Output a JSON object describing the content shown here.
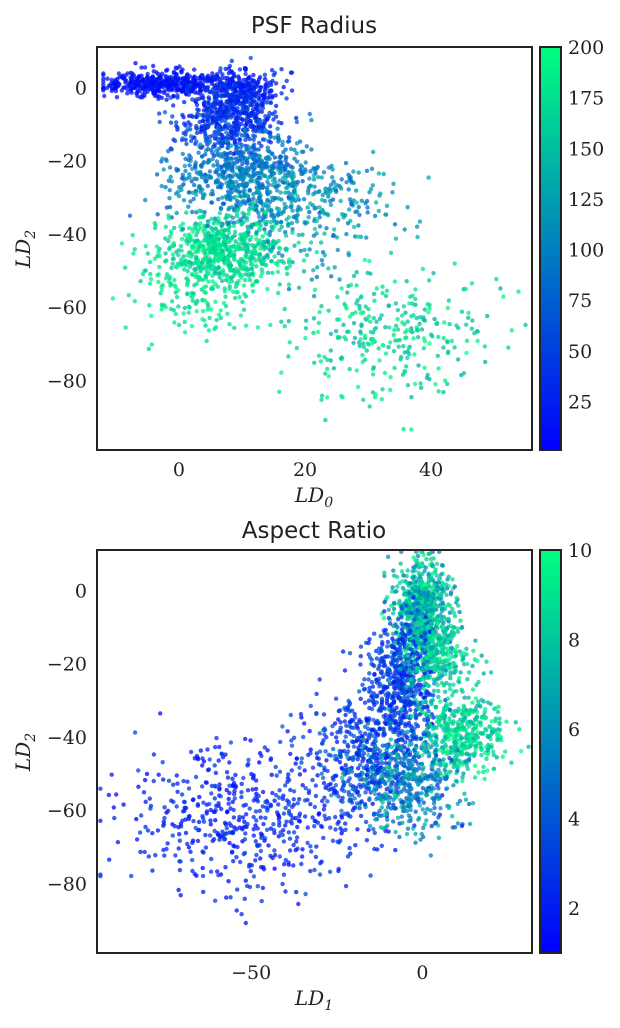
{
  "chart_data": [
    {
      "type": "scatter",
      "title": "PSF Radius",
      "xlabel_base": "LD",
      "xlabel_sub": "0",
      "ylabel_base": "LD",
      "ylabel_sub": "2",
      "xlim": [
        -13,
        56
      ],
      "ylim": [
        -99,
        11
      ],
      "xticks": [
        0,
        20,
        40
      ],
      "yticks": [
        0,
        -20,
        -40,
        -60,
        -80
      ],
      "xtick_labels": [
        "0",
        "20",
        "40"
      ],
      "ytick_labels": [
        "0",
        "−20",
        "−40",
        "−60",
        "−80"
      ],
      "colorbar": {
        "colormap": "winter",
        "range": [
          1,
          200
        ],
        "ticks": [
          25,
          50,
          75,
          100,
          125,
          150,
          175,
          200
        ],
        "tick_labels": [
          "25",
          "50",
          "75",
          "100",
          "125",
          "150",
          "175",
          "200"
        ],
        "low_color": "#0000ff",
        "high_color": "#00ff80"
      },
      "clusters": [
        {
          "cx": -2,
          "cy": 1,
          "sx": 5,
          "sy": 1.6,
          "n": 450,
          "c": [
            3,
            25
          ]
        },
        {
          "cx": 10,
          "cy": 0,
          "sx": 2.5,
          "sy": 2.5,
          "n": 200,
          "c": [
            5,
            40
          ]
        },
        {
          "cx": 8,
          "cy": -8,
          "sx": 4,
          "sy": 5,
          "n": 550,
          "c": [
            15,
            60
          ]
        },
        {
          "cx": 10,
          "cy": -24,
          "sx": 6,
          "sy": 6,
          "n": 600,
          "c": [
            65,
            125
          ]
        },
        {
          "cx": 7,
          "cy": -45,
          "sx": 5,
          "sy": 5,
          "n": 650,
          "c": [
            150,
            195
          ]
        },
        {
          "cx": 20,
          "cy": -33,
          "sx": 7,
          "sy": 7,
          "n": 300,
          "c": [
            80,
            150
          ]
        },
        {
          "cx": 34,
          "cy": -67,
          "sx": 8,
          "sy": 9,
          "n": 300,
          "c": [
            135,
            200
          ]
        },
        {
          "cx": 2,
          "cy": -58,
          "sx": 4,
          "sy": 5,
          "n": 120,
          "c": [
            160,
            200
          ]
        }
      ]
    },
    {
      "type": "scatter",
      "title": "Aspect Ratio",
      "xlabel_base": "LD",
      "xlabel_sub": "1",
      "ylabel_base": "LD",
      "ylabel_sub": "2",
      "xlim": [
        -95,
        32
      ],
      "ylim": [
        -99,
        11
      ],
      "xticks": [
        -50,
        0
      ],
      "yticks": [
        0,
        -20,
        -40,
        -60,
        -80
      ],
      "xtick_labels": [
        "−50",
        "0"
      ],
      "ytick_labels": [
        "0",
        "−20",
        "−40",
        "−60",
        "−80"
      ],
      "colorbar": {
        "colormap": "winter",
        "range": [
          1,
          10
        ],
        "ticks": [
          2,
          4,
          6,
          8,
          10
        ],
        "tick_labels": [
          "2",
          "4",
          "6",
          "8",
          "10"
        ],
        "low_color": "#0000ff",
        "high_color": "#00ff80"
      },
      "clusters": [
        {
          "cx": 0,
          "cy": -5,
          "sx": 4,
          "sy": 7,
          "n": 700,
          "c": [
            5,
            10
          ]
        },
        {
          "cx": -6,
          "cy": -25,
          "sx": 5,
          "sy": 9,
          "n": 550,
          "c": [
            1.5,
            4.5
          ]
        },
        {
          "cx": 12,
          "cy": -40,
          "sx": 6,
          "sy": 5,
          "n": 400,
          "c": [
            7,
            10
          ]
        },
        {
          "cx": -15,
          "cy": -45,
          "sx": 9,
          "sy": 8,
          "n": 450,
          "c": [
            1.5,
            4.5
          ]
        },
        {
          "cx": -5,
          "cy": -52,
          "sx": 8,
          "sy": 7,
          "n": 400,
          "c": [
            4,
            8
          ]
        },
        {
          "cx": -50,
          "cy": -62,
          "sx": 18,
          "sy": 10,
          "n": 550,
          "c": [
            1,
            3.5
          ]
        },
        {
          "cx": 5,
          "cy": -20,
          "sx": 5,
          "sy": 6,
          "n": 250,
          "c": [
            6.5,
            10
          ]
        }
      ]
    }
  ]
}
